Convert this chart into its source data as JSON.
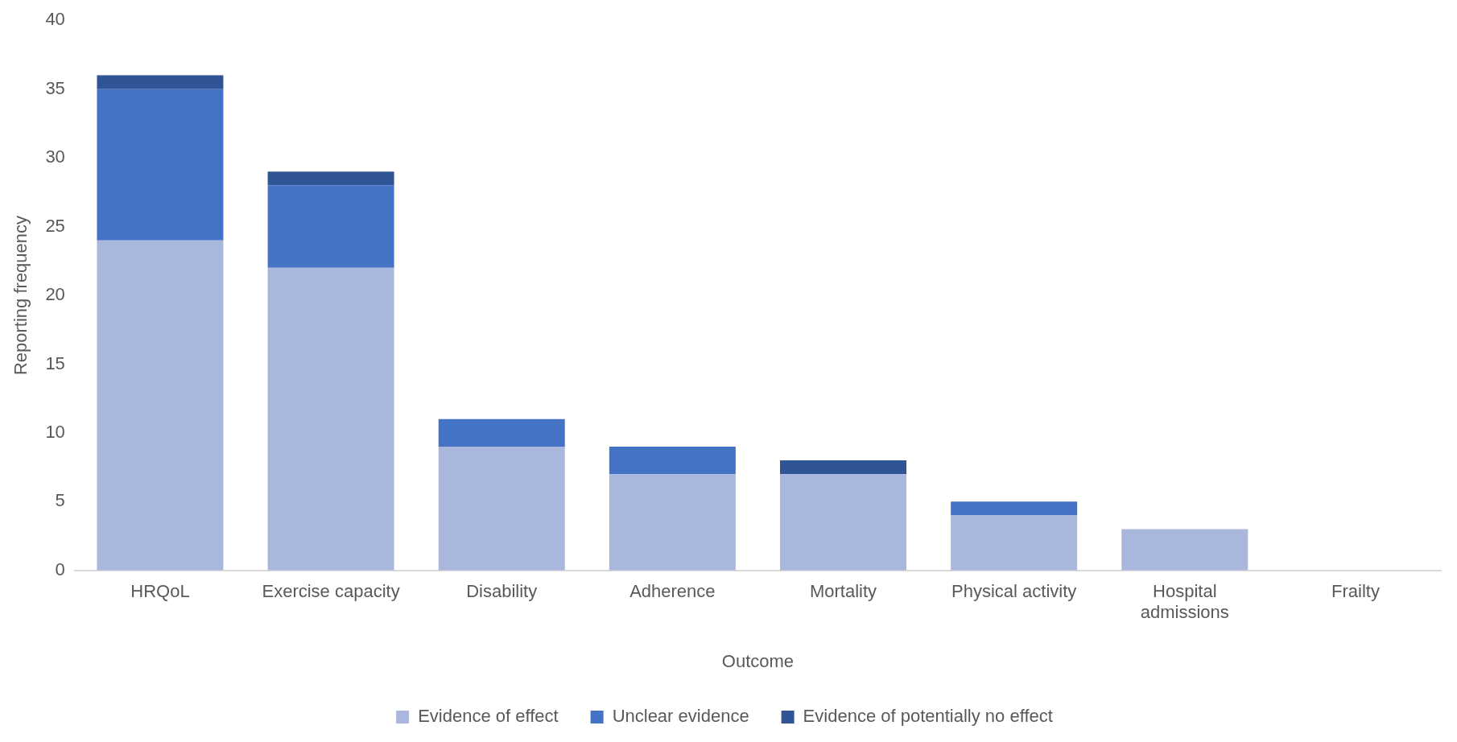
{
  "chart_data": {
    "type": "bar",
    "stacked": true,
    "xlabel": "Outcome",
    "ylabel": "Reporting frequency",
    "categories": [
      "HRQoL",
      "Exercise capacity",
      "Disability",
      "Adherence",
      "Mortality",
      "Physical activity",
      "Hospital admissions",
      "Frailty"
    ],
    "series": [
      {
        "name": "Evidence of effect",
        "color": "#a9b7dc",
        "values": [
          24,
          22,
          9,
          7,
          7,
          4,
          3,
          0
        ]
      },
      {
        "name": "Unclear evidence",
        "color": "#4472c4",
        "values": [
          11,
          6,
          2,
          2,
          0,
          1,
          0,
          0
        ]
      },
      {
        "name": "Evidence of potentially no effect",
        "color": "#2f5597",
        "values": [
          1,
          1,
          0,
          0,
          1,
          0,
          0,
          0
        ]
      }
    ],
    "ylim": [
      0,
      40
    ],
    "yticks": [
      0,
      5,
      10,
      15,
      20,
      25,
      30,
      35,
      40
    ],
    "grid": false,
    "legend": "bottom"
  }
}
